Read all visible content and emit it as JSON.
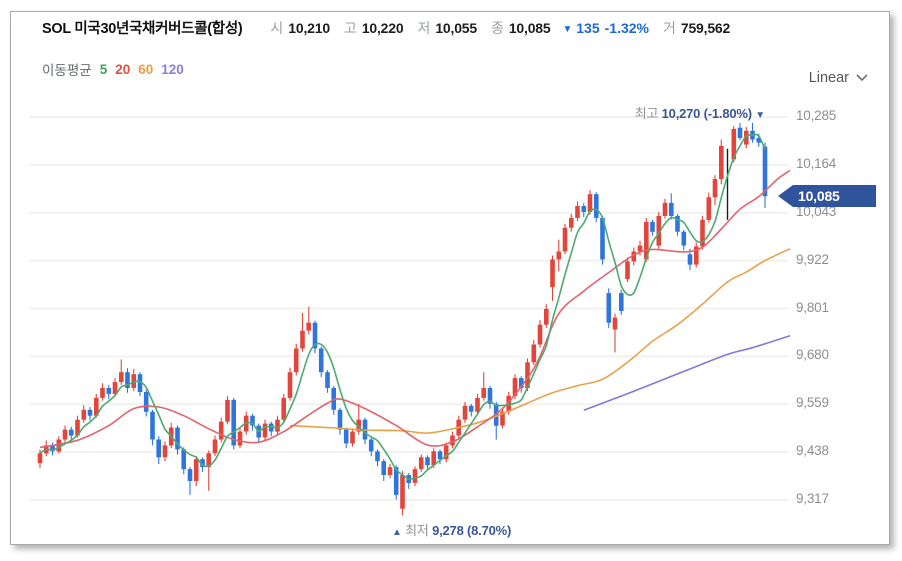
{
  "header": {
    "title": "SOL 미국30년국채커버드콜(합성)",
    "fields": [
      {
        "label": "시",
        "value": "10,210"
      },
      {
        "label": "고",
        "value": "10,220"
      },
      {
        "label": "저",
        "value": "10,055"
      },
      {
        "label": "종",
        "value": "10,085"
      }
    ],
    "change": {
      "arrow": "▼",
      "value": "135",
      "percent": "-1.32%",
      "color": "#1b6ad5"
    },
    "volume": {
      "label": "거",
      "value": "759,562"
    }
  },
  "legend": {
    "label": "이동평균",
    "items": [
      {
        "period": "5",
        "color": "#3ea25c"
      },
      {
        "period": "20",
        "color": "#e25045"
      },
      {
        "period": "60",
        "color": "#ef9d45"
      },
      {
        "period": "120",
        "color": "#8b7de4"
      }
    ]
  },
  "scale_selector": {
    "label": "Linear"
  },
  "y_axis": {
    "ticks": [
      "10,285",
      "10,164",
      "10,043",
      "9,922",
      "9,801",
      "9,680",
      "9,559",
      "9,438",
      "9,317"
    ],
    "tick_values": [
      10285,
      10164,
      10043,
      9922,
      9801,
      9680,
      9559,
      9438,
      9317
    ]
  },
  "current_price": {
    "label": "10,085",
    "value": 10085,
    "badge_color": "#30549b"
  },
  "annotations": {
    "high": {
      "prefix": "최고",
      "text": "10,270 (-1.80%)",
      "marker": "▼",
      "value": 10270,
      "index": 114
    },
    "low": {
      "prefix": "최저",
      "text": "9,278 (8.70%)",
      "marker": "▲",
      "value": 9278,
      "index": 58
    }
  },
  "chart_data": {
    "type": "candlestick",
    "title": "SOL 미국30년국채커버드콜(합성) daily chart",
    "ylim": [
      9317,
      10285
    ],
    "grid": true,
    "up_color": "#e2453c",
    "down_color": "#2f76dc",
    "grid_color": "#f1f1f1",
    "event_line": {
      "index": 110,
      "top": 10205,
      "bottom": 10025,
      "color": "#1c1c1c"
    },
    "gap_fill_close": 10233,
    "candles": [
      [
        9410,
        9445,
        9398,
        9435
      ],
      [
        9435,
        9468,
        9428,
        9455
      ],
      [
        9455,
        9462,
        9430,
        9440
      ],
      [
        9440,
        9478,
        9435,
        9470
      ],
      [
        9470,
        9505,
        9462,
        9495
      ],
      [
        9495,
        9502,
        9468,
        9480
      ],
      [
        9480,
        9530,
        9475,
        9520
      ],
      [
        9520,
        9556,
        9512,
        9545
      ],
      [
        9545,
        9552,
        9518,
        9530
      ],
      [
        9530,
        9585,
        9525,
        9575
      ],
      [
        9575,
        9612,
        9568,
        9600
      ],
      [
        9600,
        9608,
        9572,
        9585
      ],
      [
        9585,
        9625,
        9578,
        9615
      ],
      [
        9615,
        9672,
        9608,
        9640
      ],
      [
        9640,
        9650,
        9588,
        9600
      ],
      [
        9600,
        9648,
        9592,
        9635
      ],
      [
        9635,
        9640,
        9580,
        9590
      ],
      [
        9590,
        9596,
        9528,
        9540
      ],
      [
        9540,
        9545,
        9455,
        9470
      ],
      [
        9470,
        9478,
        9408,
        9425
      ],
      [
        9425,
        9465,
        9415,
        9455
      ],
      [
        9455,
        9512,
        9448,
        9500
      ],
      [
        9500,
        9505,
        9432,
        9445
      ],
      [
        9445,
        9450,
        9382,
        9395
      ],
      [
        9395,
        9400,
        9330,
        9365
      ],
      [
        9365,
        9428,
        9352,
        9420
      ],
      [
        9420,
        9425,
        9388,
        9400
      ],
      [
        9400,
        9442,
        9340,
        9435
      ],
      [
        9435,
        9480,
        9428,
        9470
      ],
      [
        9470,
        9525,
        9462,
        9515
      ],
      [
        9515,
        9580,
        9508,
        9570
      ],
      [
        9570,
        9575,
        9445,
        9455
      ],
      [
        9455,
        9500,
        9448,
        9490
      ],
      [
        9490,
        9540,
        9482,
        9530
      ],
      [
        9530,
        9535,
        9492,
        9505
      ],
      [
        9505,
        9510,
        9462,
        9475
      ],
      [
        9475,
        9520,
        9468,
        9510
      ],
      [
        9510,
        9515,
        9478,
        9490
      ],
      [
        9490,
        9530,
        9482,
        9520
      ],
      [
        9520,
        9585,
        9512,
        9575
      ],
      [
        9575,
        9652,
        9568,
        9640
      ],
      [
        9640,
        9712,
        9632,
        9700
      ],
      [
        9700,
        9790,
        9692,
        9745
      ],
      [
        9745,
        9805,
        9735,
        9765
      ],
      [
        9765,
        9770,
        9688,
        9700
      ],
      [
        9700,
        9705,
        9628,
        9640
      ],
      [
        9640,
        9645,
        9588,
        9600
      ],
      [
        9600,
        9605,
        9532,
        9545
      ],
      [
        9545,
        9550,
        9482,
        9495
      ],
      [
        9495,
        9500,
        9448,
        9460
      ],
      [
        9460,
        9498,
        9452,
        9490
      ],
      [
        9490,
        9560,
        9482,
        9520
      ],
      [
        9520,
        9525,
        9458,
        9470
      ],
      [
        9470,
        9475,
        9428,
        9440
      ],
      [
        9440,
        9445,
        9402,
        9415
      ],
      [
        9415,
        9420,
        9365,
        9380
      ],
      [
        9380,
        9408,
        9372,
        9400
      ],
      [
        9400,
        9405,
        9318,
        9330
      ],
      [
        9295,
        9390,
        9278,
        9380
      ],
      [
        9380,
        9385,
        9345,
        9360
      ],
      [
        9360,
        9402,
        9352,
        9395
      ],
      [
        9395,
        9432,
        9388,
        9425
      ],
      [
        9425,
        9430,
        9395,
        9405
      ],
      [
        9405,
        9448,
        9398,
        9440
      ],
      [
        9440,
        9445,
        9408,
        9420
      ],
      [
        9420,
        9462,
        9412,
        9455
      ],
      [
        9455,
        9490,
        9448,
        9480
      ],
      [
        9480,
        9530,
        9472,
        9520
      ],
      [
        9520,
        9565,
        9512,
        9555
      ],
      [
        9555,
        9560,
        9528,
        9540
      ],
      [
        9540,
        9585,
        9532,
        9575
      ],
      [
        9575,
        9640,
        9568,
        9600
      ],
      [
        9600,
        9605,
        9548,
        9560
      ],
      [
        9560,
        9565,
        9470,
        9505
      ],
      [
        9505,
        9550,
        9498,
        9540
      ],
      [
        9540,
        9590,
        9532,
        9580
      ],
      [
        9580,
        9635,
        9572,
        9625
      ],
      [
        9625,
        9630,
        9588,
        9600
      ],
      [
        9600,
        9675,
        9592,
        9665
      ],
      [
        9665,
        9722,
        9658,
        9710
      ],
      [
        9710,
        9772,
        9702,
        9760
      ],
      [
        9760,
        9812,
        9752,
        9800
      ],
      [
        9855,
        9935,
        9820,
        9925
      ],
      [
        9925,
        9975,
        9895,
        9945
      ],
      [
        9945,
        10015,
        9938,
        10005
      ],
      [
        10005,
        10040,
        9995,
        10030
      ],
      [
        10030,
        10072,
        10022,
        10060
      ],
      [
        10060,
        10068,
        10032,
        10045
      ],
      [
        10045,
        10100,
        10038,
        10090
      ],
      [
        10090,
        10095,
        10020,
        10030
      ],
      [
        10030,
        10035,
        9912,
        9925
      ],
      [
        9840,
        9852,
        9752,
        9765
      ],
      [
        9748,
        9788,
        9690,
        9778
      ],
      [
        9840,
        9848,
        9785,
        9795
      ],
      [
        9875,
        9930,
        9868,
        9920
      ],
      [
        9920,
        9955,
        9910,
        9945
      ],
      [
        9945,
        9972,
        9935,
        9960
      ],
      [
        9925,
        10030,
        9918,
        10020
      ],
      [
        10020,
        10025,
        9985,
        9995
      ],
      [
        9960,
        10045,
        9952,
        10035
      ],
      [
        10035,
        10078,
        10028,
        10068
      ],
      [
        10068,
        10092,
        10026,
        10035
      ],
      [
        10035,
        10040,
        9985,
        9995
      ],
      [
        9995,
        10000,
        9948,
        9960
      ],
      [
        9938,
        9952,
        9898,
        9912
      ],
      [
        9912,
        9968,
        9905,
        9958
      ],
      [
        9958,
        10035,
        9950,
        10025
      ],
      [
        10025,
        10094,
        10018,
        10082
      ],
      [
        10082,
        10138,
        10062,
        10128
      ],
      [
        10128,
        10228,
        10115,
        10212
      ],
      null,
      [
        10178,
        10262,
        10170,
        10255
      ],
      [
        10258,
        10270,
        10226,
        10232
      ],
      [
        10215,
        10260,
        10206,
        10250
      ],
      [
        10250,
        10270,
        10220,
        10228
      ],
      [
        10232,
        10242,
        10210,
        10220
      ],
      [
        10210,
        10220,
        10055,
        10085
      ]
    ],
    "ma": {
      "ma5": {
        "color": "#4caa70",
        "computed_from_closes": true,
        "window": 5
      },
      "ma20": {
        "color": "#e4626b",
        "points": [
          [
            0,
            9450
          ],
          [
            6,
            9468
          ],
          [
            11,
            9505
          ],
          [
            15,
            9548
          ],
          [
            19,
            9552
          ],
          [
            23,
            9530
          ],
          [
            27,
            9497
          ],
          [
            31,
            9470
          ],
          [
            35,
            9463
          ],
          [
            39,
            9490
          ],
          [
            43,
            9532
          ],
          [
            46,
            9562
          ],
          [
            48,
            9572
          ],
          [
            52,
            9548
          ],
          [
            57,
            9505
          ],
          [
            62,
            9456
          ],
          [
            66,
            9464
          ],
          [
            70,
            9502
          ],
          [
            74,
            9548
          ],
          [
            78,
            9625
          ],
          [
            80,
            9680
          ],
          [
            83,
            9788
          ],
          [
            87,
            9845
          ],
          [
            91,
            9892
          ],
          [
            95,
            9936
          ],
          [
            98,
            9950
          ],
          [
            103,
            9944
          ],
          [
            106,
            9956
          ],
          [
            109,
            10002
          ],
          [
            112,
            10052
          ],
          [
            115,
            10084
          ],
          [
            118,
            10128
          ],
          [
            120,
            10150
          ]
        ]
      },
      "ma60": {
        "color": "#e9a24b",
        "points": [
          [
            40,
            9505
          ],
          [
            46,
            9500
          ],
          [
            52,
            9494
          ],
          [
            58,
            9492
          ],
          [
            62,
            9486
          ],
          [
            66,
            9497
          ],
          [
            70,
            9512
          ],
          [
            74,
            9535
          ],
          [
            78,
            9562
          ],
          [
            82,
            9588
          ],
          [
            86,
            9606
          ],
          [
            90,
            9622
          ],
          [
            94,
            9665
          ],
          [
            98,
            9718
          ],
          [
            102,
            9760
          ],
          [
            106,
            9812
          ],
          [
            110,
            9868
          ],
          [
            113,
            9893
          ],
          [
            116,
            9922
          ],
          [
            120,
            9952
          ]
        ]
      },
      "ma120": {
        "color": "#8377dd",
        "points": [
          [
            87,
            9544
          ],
          [
            95,
            9592
          ],
          [
            103,
            9642
          ],
          [
            110,
            9685
          ],
          [
            114,
            9702
          ],
          [
            120,
            9732
          ]
        ]
      }
    }
  },
  "colors": {
    "badge_text": "#ffffff",
    "annotation_value": "#3b5695",
    "annotation_label": "#8f9297",
    "annotation_marker": "#3c60ad",
    "axis_label": "#8b8e93",
    "card_border": "#a9a9a9"
  }
}
